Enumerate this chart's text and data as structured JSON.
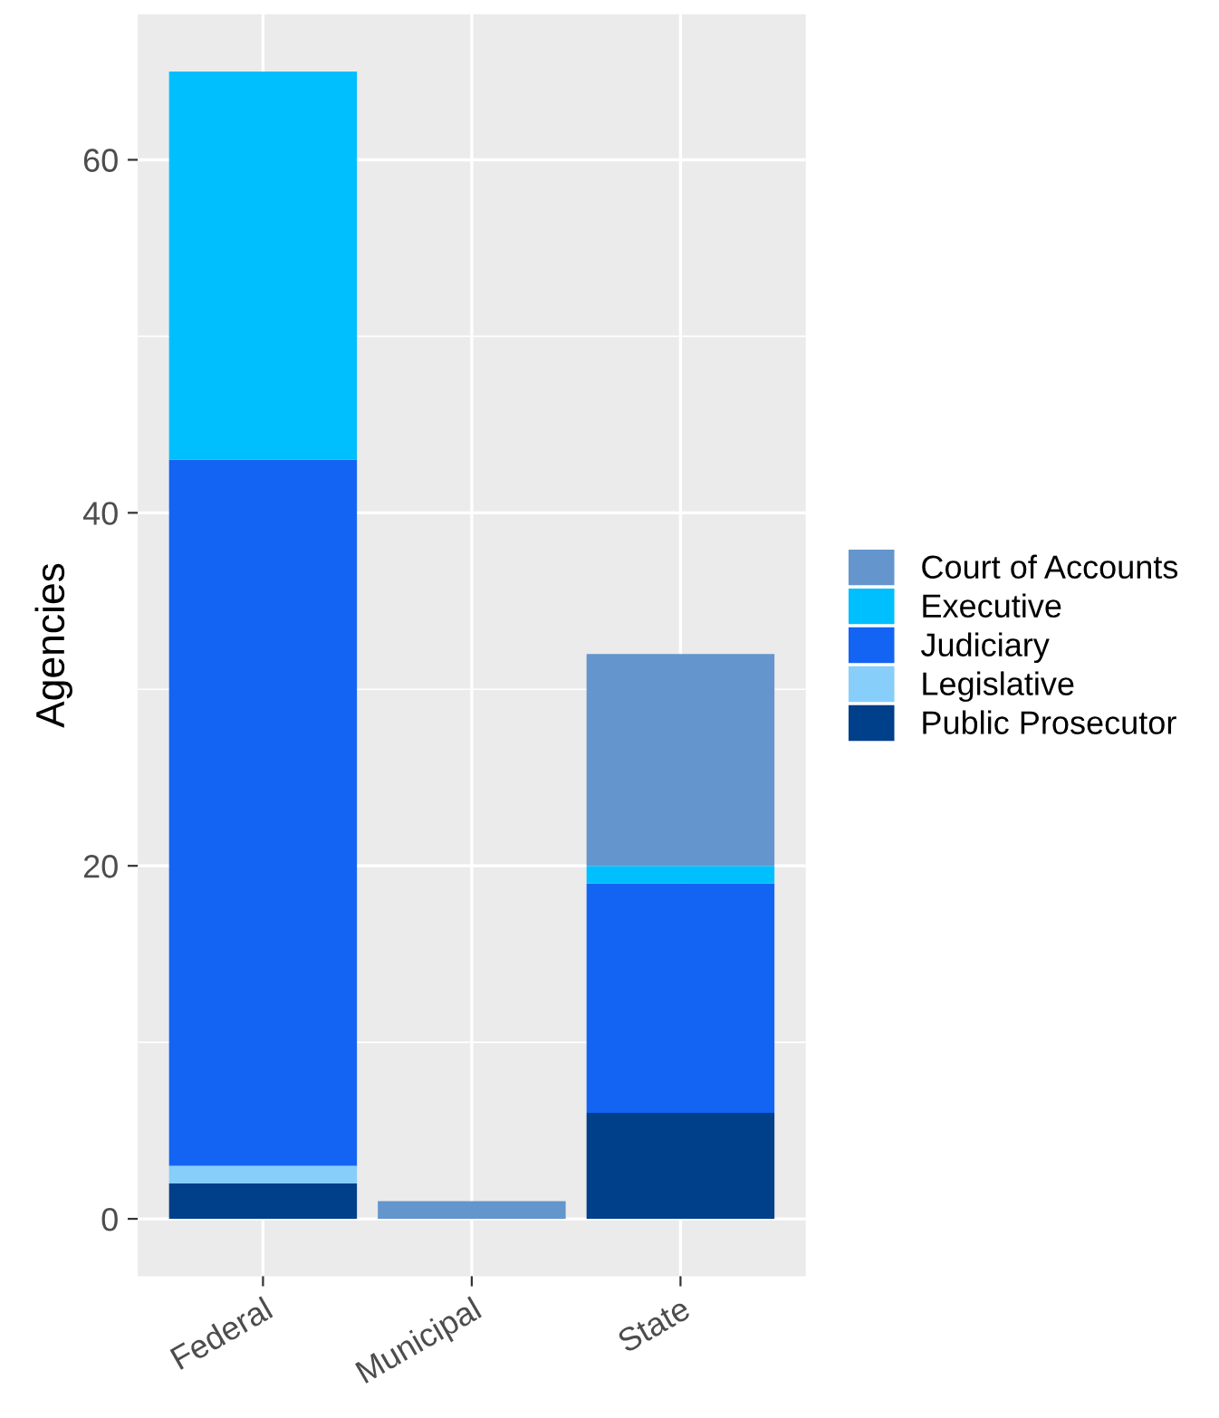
{
  "chart_data": {
    "type": "bar",
    "ylabel": "Agencies",
    "categories": [
      "Federal",
      "Municipal",
      "State"
    ],
    "stacked": true,
    "ylim": [
      -3.25,
      68.25
    ],
    "yticks": [
      0,
      20,
      40,
      60
    ],
    "grid": true,
    "legend": "right",
    "series": [
      {
        "name": "Public Prosecutor",
        "color": "#003f8a",
        "values": [
          2,
          0,
          6
        ]
      },
      {
        "name": "Legislative",
        "color": "#87cefa",
        "values": [
          1,
          0,
          0
        ]
      },
      {
        "name": "Judiciary",
        "color": "#1464f4",
        "values": [
          40,
          0,
          13
        ]
      },
      {
        "name": "Executive",
        "color": "#00bfff",
        "values": [
          22,
          0,
          1
        ]
      },
      {
        "name": "Court of Accounts",
        "color": "#6495cd",
        "values": [
          0,
          1,
          12
        ]
      }
    ]
  }
}
